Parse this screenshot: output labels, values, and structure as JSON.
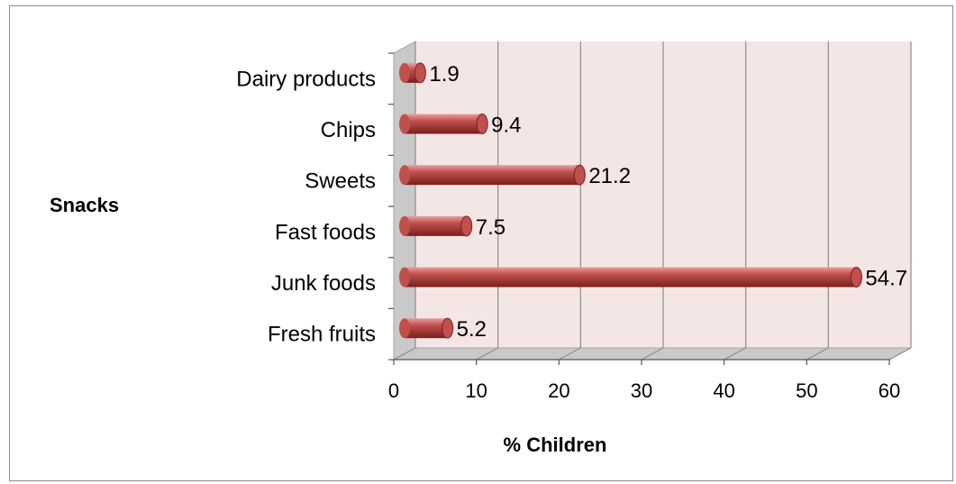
{
  "chart_data": {
    "type": "bar",
    "orientation": "horizontal",
    "style": "3d-cylinder",
    "categories": [
      "Fresh fruits",
      "Junk foods",
      "Fast foods",
      "Sweets",
      "Chips",
      "Dairy products"
    ],
    "values": [
      5.2,
      54.7,
      7.5,
      21.2,
      9.4,
      1.9
    ],
    "value_labels": [
      "5.2",
      "54.7",
      "7.5",
      "21.2",
      "9.4",
      "1.9"
    ],
    "xlabel": "% Children",
    "ylabel": "Snacks",
    "xlim": [
      0,
      60
    ],
    "xticks": [
      "0",
      "10",
      "20",
      "30",
      "40",
      "50",
      "60"
    ],
    "grid": "vertical",
    "legend": "none",
    "colors": {
      "bar": "#c0504d",
      "bar_highlight": "#e8a09e",
      "bar_shadow": "#7a1f1c",
      "plot_back_wall": "#f5e6e6",
      "plot_side_wall": "#c9c9c9",
      "grid": "#8c8c8c"
    }
  }
}
